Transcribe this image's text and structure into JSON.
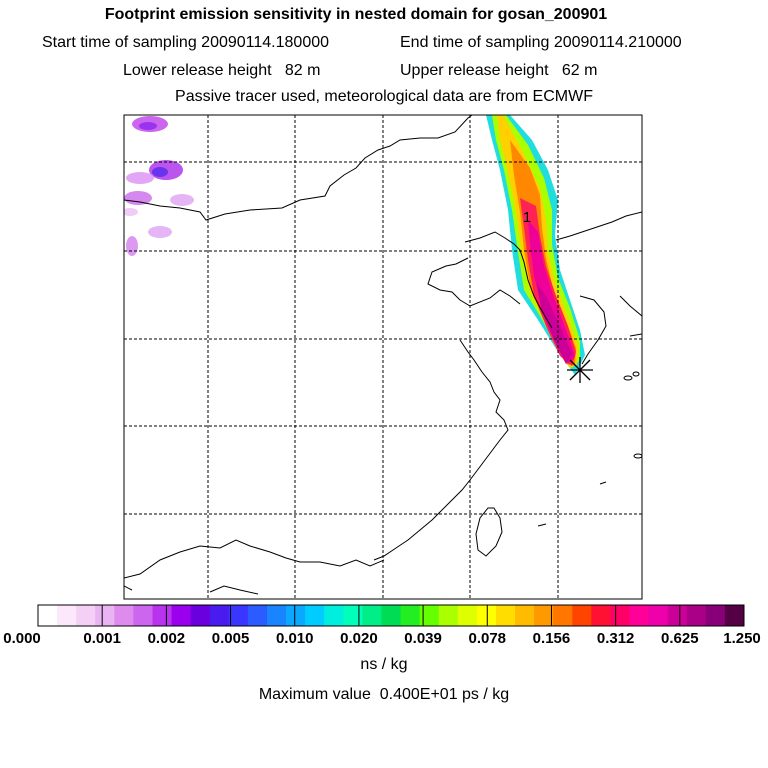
{
  "header": {
    "title": "Footprint emission sensitivity in nested domain for gosan_200901",
    "start_sampling": "Start time of sampling 20090114.180000",
    "end_sampling": "End time of sampling 20090114.210000",
    "lower_release": "Lower release height   82 m",
    "upper_release": "Upper release height   62 m",
    "tracer_note": "Passive tracer used, meteorological data are from ECMWF"
  },
  "map": {
    "plume_label": "1",
    "receptor_marker": "star-icon",
    "gridlines": "dashed",
    "colors": {
      "background": "#ffffff",
      "coastline": "#000000"
    }
  },
  "colorbar": {
    "tick_labels": [
      "0.000",
      "0.001",
      "0.002",
      "0.005",
      "0.010",
      "0.020",
      "0.039",
      "0.078",
      "0.156",
      "0.312",
      "0.625",
      "1.250"
    ],
    "colors": [
      "#ffffff",
      "#fbe8fb",
      "#f4d0f6",
      "#eab4f2",
      "#dd8cee",
      "#cc66ee",
      "#b933ee",
      "#9a00ee",
      "#6a00dd",
      "#4a1bee",
      "#3a36ff",
      "#2a5cff",
      "#1a84ff",
      "#0aa8ff",
      "#00ccff",
      "#00eedd",
      "#00ffbb",
      "#00ee88",
      "#00dd55",
      "#22ee22",
      "#66ff00",
      "#aaff00",
      "#ddff00",
      "#ffff00",
      "#ffdd00",
      "#ffbb00",
      "#ff9900",
      "#ff7700",
      "#ff4400",
      "#ff1133",
      "#ff0066",
      "#ff0099",
      "#ee00aa",
      "#cc0099",
      "#aa0088",
      "#880077",
      "#550044"
    ],
    "units": "ns / kg",
    "max_value": "Maximum value  0.400E+01 ps / kg"
  }
}
